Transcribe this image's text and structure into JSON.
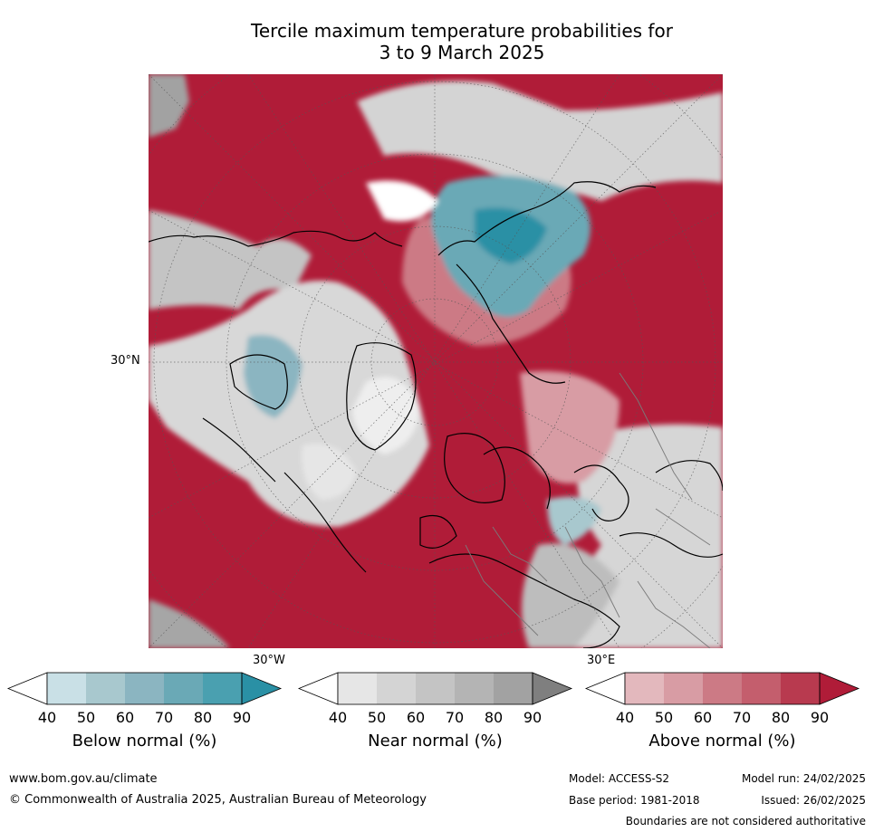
{
  "title_line1": "Tercile maximum temperature probabilities for",
  "title_line2": "3 to 9 March 2025",
  "map": {
    "lat_label": "30°N",
    "lon_labels": [
      "30°W",
      "30°E"
    ]
  },
  "legends": [
    {
      "label": "Below normal (%)",
      "ticks": [
        "40",
        "50",
        "60",
        "70",
        "80",
        "90"
      ],
      "colors": [
        "#ffffff",
        "#c9e0e6",
        "#a8c8ce",
        "#8bb5c1",
        "#6aa9b6",
        "#4aa0b0",
        "#2a90a5"
      ]
    },
    {
      "label": "Near normal (%)",
      "ticks": [
        "40",
        "50",
        "60",
        "70",
        "80",
        "90"
      ],
      "colors": [
        "#ffffff",
        "#e6e6e6",
        "#d4d4d4",
        "#c4c4c4",
        "#b4b4b4",
        "#a2a2a2",
        "#7f7f7f"
      ]
    },
    {
      "label": "Above normal (%)",
      "ticks": [
        "40",
        "50",
        "60",
        "70",
        "80",
        "90"
      ],
      "colors": [
        "#ffffff",
        "#e3b8bd",
        "#d89ca4",
        "#cc7a85",
        "#c45e6d",
        "#b83a4f",
        "#b01c38"
      ]
    }
  ],
  "footer": {
    "url": "www.bom.gov.au/climate",
    "copyright": "© Commonwealth of Australia 2025, Australian Bureau of Meteorology",
    "model": "Model: ACCESS-S2",
    "model_run": "Model run: 24/02/2025",
    "base_period": "Base period: 1981-2018",
    "issued": "Issued: 26/02/2025",
    "disclaimer": "Boundaries are not considered authoritative"
  }
}
